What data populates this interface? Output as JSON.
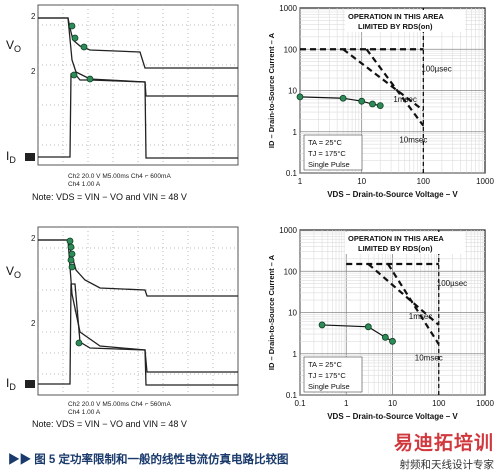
{
  "scope_panels": [
    {
      "panel": "top",
      "vo_label": "V",
      "vo_sub": "O",
      "id_label": "I",
      "id_sub": "D",
      "marker_2a": "2",
      "marker_2b": "2",
      "marker_i": "1",
      "status": "Ch2  20.0 V     M5.00ms  Ch4 ⌐  600mA",
      "status2": "Ch4  1.00 A",
      "note": "Note: V",
      "note_full": "Note: VDS = VIN − VO and VIN = 48 V"
    },
    {
      "panel": "bottom",
      "vo_label": "V",
      "vo_sub": "O",
      "id_label": "I",
      "id_sub": "D",
      "marker_2a": "2",
      "marker_2b": "2",
      "marker_i": "1",
      "status": "Ch2  20.0 V     M5.00ms  Ch4 ⌐  560mA",
      "status2": "Ch4  1.00 A",
      "note_full": "Note: VDS = VIN − VO and VIN = 48 V"
    }
  ],
  "soa_panels": [
    {
      "panel": "top",
      "ylabel": "ID – Drain-to-Source Current – A",
      "xlabel": "VDS – Drain-to-Source Voltage – V",
      "y_ticks": [
        "0.1",
        "1",
        "10",
        "100",
        "1000"
      ],
      "x_ticks": [
        "1",
        "10",
        "100",
        "1000"
      ],
      "annotation_1": "OPERATION IN THIS AREA",
      "annotation_2": "LIMITED BY RDS(on)",
      "lines": [
        "100µsec",
        "1msec",
        "10msec"
      ],
      "conditions": [
        "TA = 25°C",
        "TJ = 175°C",
        "Single Pulse"
      ]
    },
    {
      "panel": "bottom",
      "ylabel": "ID – Drain-to-Source Current – A",
      "xlabel": "VDS – Drain-to-Source Voltage – V",
      "y_ticks": [
        "0.1",
        "1",
        "10",
        "100",
        "1000"
      ],
      "x_ticks": [
        "0.1",
        "1",
        "10",
        "100",
        "1000"
      ],
      "annotation_1": "OPERATION IN THIS AREA",
      "annotation_2": "LIMITED BY RDS(on)",
      "lines": [
        "100µsec",
        "1msec",
        "10msec"
      ],
      "conditions": [
        "TA = 25°C",
        "TJ = 175°C",
        "Single Pulse"
      ]
    }
  ],
  "caption": "▶▶ 图 5    定功率限制和一般的线性电流仿真电路比较图",
  "watermark_big": "易迪拓培训",
  "watermark_small": "射频和天线设计专家",
  "chart_data": [
    {
      "type": "line",
      "panel": "top-right SOA",
      "x_scale": "log",
      "y_scale": "log",
      "xlim": [
        1,
        1000
      ],
      "ylim": [
        0.1,
        1000
      ],
      "xlabel": "VDS – Drain-to-Source Voltage – V",
      "ylabel": "ID – Drain-to-Source Current – A",
      "series": [
        {
          "name": "100µsec",
          "x": [
            1,
            100
          ],
          "y": [
            100,
            100
          ]
        },
        {
          "name": "1msec",
          "x": [
            5,
            100
          ],
          "y": [
            100,
            3.3
          ]
        },
        {
          "name": "10msec",
          "x": [
            12,
            100
          ],
          "y": [
            100,
            1.4
          ]
        },
        {
          "name": "",
          "x": [
            1,
            5,
            10,
            15,
            20
          ],
          "y": [
            7,
            6.5,
            5.5,
            4.7,
            4.3
          ]
        }
      ]
    },
    {
      "type": "line",
      "panel": "bottom-right SOA",
      "x_scale": "log",
      "y_scale": "log",
      "xlim": [
        0.1,
        1000
      ],
      "ylim": [
        0.1,
        1000
      ],
      "xlabel": "VDS – Drain-to-Source Voltage – V",
      "ylabel": "ID – Drain-to-Source Current – A",
      "series": [
        {
          "name": "100µsec",
          "x": [
            1,
            100
          ],
          "y": [
            150,
            150
          ]
        },
        {
          "name": "1msec",
          "x": [
            3,
            100
          ],
          "y": [
            150,
            5
          ]
        },
        {
          "name": "10msec",
          "x": [
            8,
            100
          ],
          "y": [
            150,
            1.7
          ]
        },
        {
          "name": "",
          "x": [
            0.3,
            3,
            7,
            10
          ],
          "y": [
            5,
            4.5,
            2.5,
            2
          ]
        }
      ]
    }
  ]
}
